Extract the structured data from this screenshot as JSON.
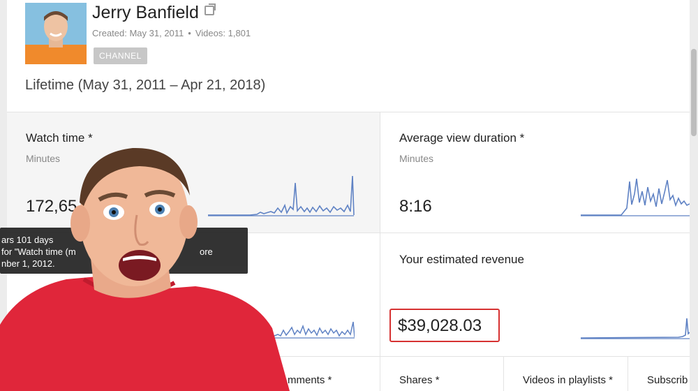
{
  "channel": {
    "name": "Jerry Banfield",
    "created": "Created: May 31, 2011",
    "videos": "Videos: 1,801",
    "separator": "•",
    "badge": "CHANNEL"
  },
  "period": "Lifetime (May 31, 2011 – Apr 21, 2018)",
  "metrics": {
    "watch_time": {
      "title": "Watch time *",
      "unit": "Minutes",
      "value": "172,65"
    },
    "avg_view_duration": {
      "title": "Average view duration *",
      "unit": "Minutes",
      "value": "8:16"
    },
    "revenue": {
      "title": "Your estimated revenue",
      "value": "$39,028.03"
    }
  },
  "bottom_metrics": {
    "comments": "mments *",
    "shares": "Shares *",
    "videos_in_playlists": "Videos in playlists *",
    "subscribers": "Subscrib"
  },
  "tooltip": {
    "line1": "ars 101 days",
    "line2": "for \"Watch time (m",
    "line2_tail": "ore",
    "line3": "nber 1, 2012."
  },
  "colors": {
    "sparkline": "#5f82c4",
    "highlight": "#d63232"
  }
}
